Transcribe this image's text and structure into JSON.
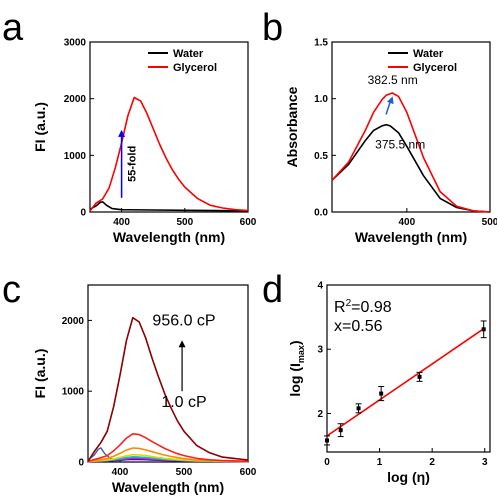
{
  "chart_data": [
    {
      "panel": "a",
      "type": "line",
      "xlabel": "Wavelength (nm)",
      "ylabel": "FI (a.u.)",
      "xlim": [
        350,
        600
      ],
      "ylim": [
        0,
        3000
      ],
      "xticks": [
        400,
        500,
        600
      ],
      "yticks": [
        0,
        1000,
        2000,
        3000
      ],
      "legend_position": "top-right",
      "series": [
        {
          "name": "Water",
          "color": "#000000",
          "x": [
            350,
            360,
            366,
            370,
            376,
            385,
            400,
            450,
            500,
            550,
            600
          ],
          "y": [
            50,
            110,
            170,
            180,
            120,
            60,
            40,
            35,
            30,
            25,
            20
          ]
        },
        {
          "name": "Glycerol",
          "color": "#ff0000",
          "x": [
            350,
            360,
            370,
            380,
            390,
            400,
            410,
            420,
            430,
            440,
            450,
            460,
            470,
            480,
            490,
            500,
            520,
            540,
            560,
            580,
            600
          ],
          "y": [
            20,
            160,
            230,
            420,
            780,
            1220,
            1700,
            2020,
            1960,
            1740,
            1470,
            1200,
            960,
            750,
            580,
            440,
            240,
            120,
            70,
            40,
            25
          ]
        }
      ],
      "annotation": {
        "text": "55-fold",
        "color": "#0000ff",
        "x": 400,
        "y_from": 250,
        "y_to": 1450
      }
    },
    {
      "panel": "b",
      "type": "line",
      "xlabel": "Wavelength (nm)",
      "ylabel": "Absorbance",
      "xlim": [
        310,
        500
      ],
      "ylim": [
        0,
        1.5
      ],
      "xticks": [
        400,
        500
      ],
      "yticks": [
        0.0,
        0.5,
        1.0,
        1.5
      ],
      "legend_position": "top-right",
      "series": [
        {
          "name": "Water",
          "color": "#000000",
          "x": [
            310,
            330,
            350,
            360,
            370,
            375.5,
            380,
            390,
            400,
            420,
            440,
            460,
            480,
            500
          ],
          "y": [
            0.28,
            0.42,
            0.63,
            0.72,
            0.76,
            0.77,
            0.76,
            0.7,
            0.58,
            0.32,
            0.12,
            0.04,
            0.01,
            0.0
          ]
        },
        {
          "name": "Glycerol",
          "color": "#ff0000",
          "x": [
            310,
            330,
            350,
            360,
            370,
            375,
            382.5,
            390,
            400,
            420,
            440,
            460,
            480,
            500
          ],
          "y": [
            0.28,
            0.44,
            0.72,
            0.88,
            0.99,
            1.03,
            1.05,
            1.02,
            0.88,
            0.48,
            0.18,
            0.05,
            0.01,
            0.0
          ]
        }
      ],
      "labels": [
        {
          "text": "382.5 nm",
          "color": "#ff0000",
          "x": 383,
          "y": 1.13
        },
        {
          "text": "375.5 nm",
          "color": "#000000",
          "x": 392,
          "y": 0.56
        }
      ]
    },
    {
      "panel": "c",
      "type": "line",
      "xlabel": "Wavelength (nm)",
      "ylabel": "FI (a.u.)",
      "xlim": [
        350,
        600
      ],
      "ylim": [
        0,
        2500
      ],
      "xticks": [
        400,
        500,
        600
      ],
      "yticks": [
        0,
        1000,
        2000
      ],
      "wavelengths": [
        350,
        360,
        370,
        380,
        390,
        400,
        410,
        420,
        430,
        440,
        450,
        460,
        470,
        480,
        490,
        500,
        520,
        540,
        560,
        580,
        600
      ],
      "series": [
        {
          "color": "#1a1a90",
          "peak": 30
        },
        {
          "color": "#ff00ff",
          "peak": 45
        },
        {
          "color": "#00c8c8",
          "peak": 65
        },
        {
          "color": "#dddd00",
          "peak": 95
        },
        {
          "color": "#ff8800",
          "peak": 190
        },
        {
          "color": "#ff2020",
          "peak": 390
        },
        {
          "color": "#8b0000",
          "peak": 2030
        }
      ],
      "peak_profile": [
        0.0,
        0.07,
        0.13,
        0.21,
        0.38,
        0.6,
        0.84,
        1.0,
        0.97,
        0.86,
        0.72,
        0.59,
        0.47,
        0.37,
        0.28,
        0.21,
        0.11,
        0.06,
        0.03,
        0.02,
        0.01
      ],
      "water_band": {
        "color": "#4060a0",
        "x": [
          350,
          360,
          366,
          370,
          376,
          385,
          400
        ],
        "y": [
          30,
          100,
          180,
          200,
          120,
          50,
          20
        ]
      },
      "annotations": [
        {
          "text": "956.0 cP",
          "x": 500,
          "y": 1930
        },
        {
          "text": "1.0 cP",
          "x": 500,
          "y": 780
        }
      ],
      "arrow": {
        "x": 497,
        "y_from": 1000,
        "y_to": 1720
      }
    },
    {
      "panel": "d",
      "type": "scatter",
      "xlabel": "log (η)",
      "ylabel": "log (I",
      "ylabel_sub": "max",
      "ylabel_end": ")",
      "xlim": [
        0,
        3.1
      ],
      "ylim": [
        1.4,
        4.0
      ],
      "xticks": [
        0,
        1,
        2,
        3
      ],
      "yticks": [
        2,
        3,
        4
      ],
      "points": [
        {
          "x": 0.0,
          "y": 1.58,
          "err": 0.07
        },
        {
          "x": 0.26,
          "y": 1.74,
          "err": 0.1
        },
        {
          "x": 0.6,
          "y": 2.08,
          "err": 0.07
        },
        {
          "x": 1.03,
          "y": 2.31,
          "err": 0.11
        },
        {
          "x": 1.76,
          "y": 2.57,
          "err": 0.07
        },
        {
          "x": 2.98,
          "y": 3.31,
          "err": 0.13
        }
      ],
      "fit": {
        "color": "#ff0000",
        "x": [
          0.0,
          2.98
        ],
        "y": [
          1.65,
          3.32
        ]
      },
      "stats": {
        "r2_text": "R",
        "r2_sup": "2",
        "r2_value": "=0.98",
        "x_text": "x=0.56"
      }
    }
  ]
}
